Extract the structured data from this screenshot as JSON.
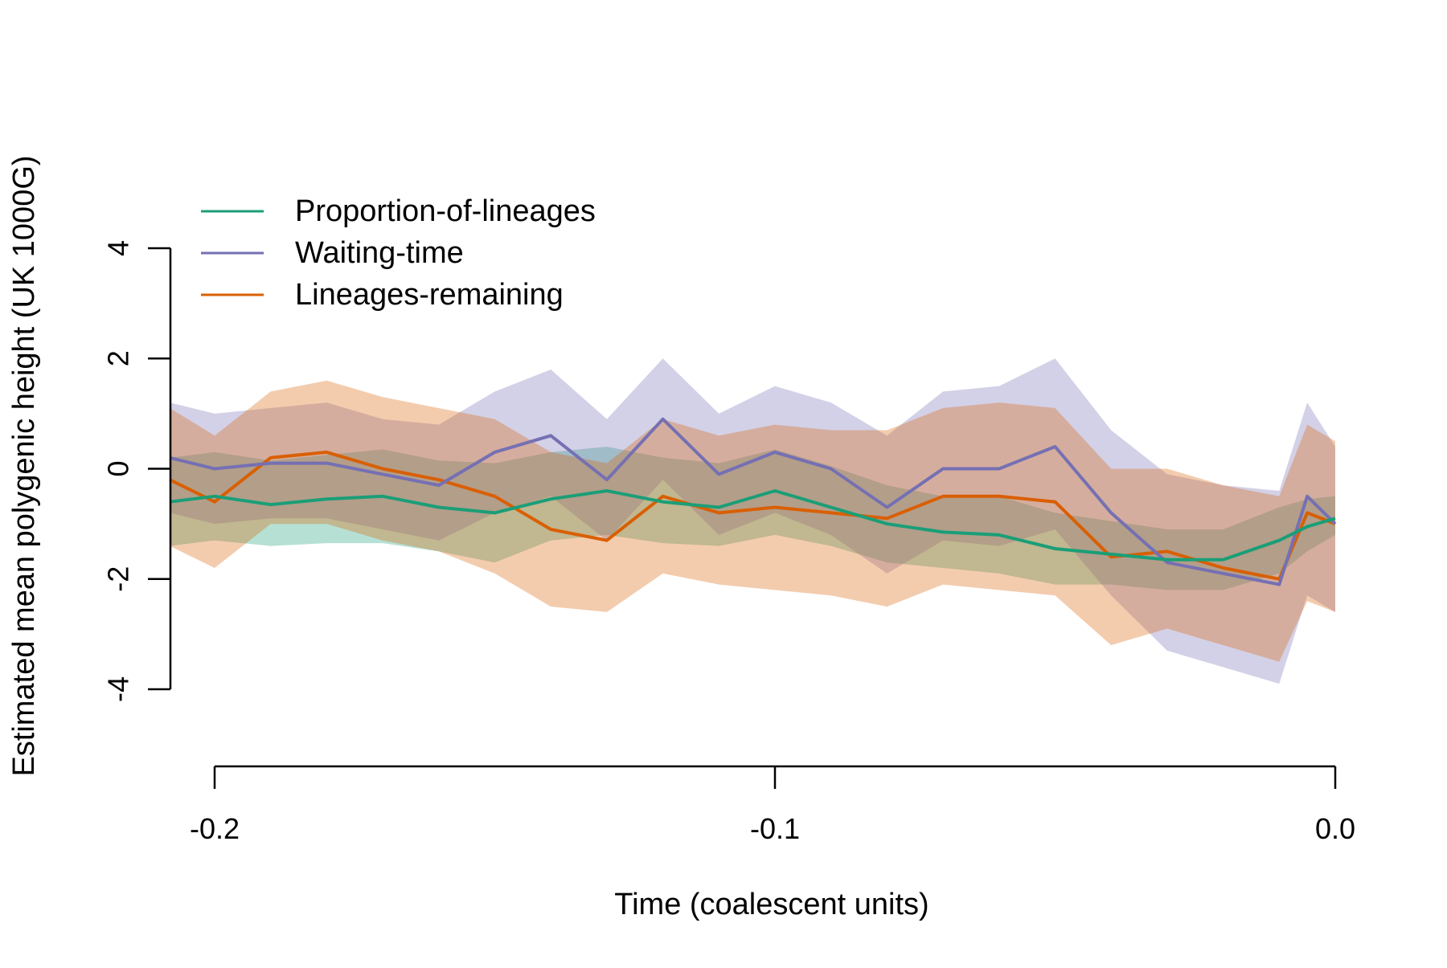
{
  "chart_data": {
    "type": "line",
    "title": "",
    "xlabel": "Time (coalescent units)",
    "ylabel": "Estimated mean polygenic height (UK 1000G)",
    "xlim": [
      -0.21,
      0.0
    ],
    "ylim": [
      -4,
      4
    ],
    "x_ticks": [
      -0.2,
      -0.1,
      0.0
    ],
    "x_tick_labels": [
      "-0.2",
      "-0.1",
      "0.0"
    ],
    "y_ticks": [
      -4,
      -2,
      0,
      2,
      4
    ],
    "y_tick_labels": [
      "-4",
      "-2",
      "0",
      "2",
      "4"
    ],
    "grid": false,
    "legend_position": "top-left",
    "series": [
      {
        "name": "Proportion-of-lineages",
        "color": "#1b9e77",
        "band_color": "rgba(27,158,119,0.32)",
        "x": [
          -0.208,
          -0.2,
          -0.19,
          -0.18,
          -0.17,
          -0.16,
          -0.15,
          -0.14,
          -0.13,
          -0.12,
          -0.11,
          -0.1,
          -0.09,
          -0.08,
          -0.07,
          -0.06,
          -0.05,
          -0.04,
          -0.03,
          -0.02,
          -0.01,
          -0.005,
          0.0
        ],
        "y": [
          -0.6,
          -0.5,
          -0.65,
          -0.55,
          -0.5,
          -0.7,
          -0.8,
          -0.55,
          -0.4,
          -0.6,
          -0.7,
          -0.4,
          -0.7,
          -1.0,
          -1.15,
          -1.2,
          -1.45,
          -1.55,
          -1.65,
          -1.65,
          -1.3,
          -1.05,
          -0.9
        ],
        "lower": [
          -1.4,
          -1.3,
          -1.4,
          -1.35,
          -1.35,
          -1.5,
          -1.7,
          -1.3,
          -1.2,
          -1.35,
          -1.4,
          -1.2,
          -1.4,
          -1.7,
          -1.8,
          -1.9,
          -2.1,
          -2.1,
          -2.2,
          -2.2,
          -1.9,
          -1.5,
          -1.2
        ],
        "upper": [
          0.2,
          0.3,
          0.15,
          0.25,
          0.35,
          0.15,
          0.1,
          0.3,
          0.4,
          0.2,
          0.1,
          0.35,
          0.05,
          -0.3,
          -0.5,
          -0.5,
          -0.8,
          -0.95,
          -1.1,
          -1.1,
          -0.7,
          -0.55,
          -0.5
        ]
      },
      {
        "name": "Waiting-time",
        "color": "#7570b3",
        "band_color": "rgba(117,112,179,0.32)",
        "x": [
          -0.208,
          -0.2,
          -0.19,
          -0.18,
          -0.17,
          -0.16,
          -0.15,
          -0.14,
          -0.13,
          -0.12,
          -0.11,
          -0.1,
          -0.09,
          -0.08,
          -0.07,
          -0.06,
          -0.05,
          -0.04,
          -0.03,
          -0.02,
          -0.01,
          -0.005,
          0.0
        ],
        "y": [
          0.2,
          0.0,
          0.1,
          0.1,
          -0.1,
          -0.3,
          0.3,
          0.6,
          -0.2,
          0.9,
          -0.1,
          0.3,
          0.0,
          -0.7,
          0.0,
          0.0,
          0.4,
          -0.8,
          -1.7,
          -1.9,
          -2.1,
          -0.5,
          -1.0
        ],
        "lower": [
          -0.8,
          -1.0,
          -0.9,
          -0.9,
          -1.1,
          -1.3,
          -0.8,
          -0.5,
          -1.3,
          -0.2,
          -1.2,
          -0.8,
          -1.2,
          -1.9,
          -1.3,
          -1.4,
          -1.1,
          -2.3,
          -3.3,
          -3.6,
          -3.9,
          -2.3,
          -2.6
        ],
        "upper": [
          1.2,
          1.0,
          1.1,
          1.2,
          0.9,
          0.8,
          1.4,
          1.8,
          0.9,
          2.0,
          1.0,
          1.5,
          1.2,
          0.6,
          1.4,
          1.5,
          2.0,
          0.7,
          -0.1,
          -0.3,
          -0.4,
          1.2,
          0.4
        ]
      },
      {
        "name": "Lineages-remaining",
        "color": "#d95f02",
        "band_color": "rgba(217,95,2,0.32)",
        "x": [
          -0.208,
          -0.2,
          -0.19,
          -0.18,
          -0.17,
          -0.16,
          -0.15,
          -0.14,
          -0.13,
          -0.12,
          -0.11,
          -0.1,
          -0.09,
          -0.08,
          -0.07,
          -0.06,
          -0.05,
          -0.04,
          -0.03,
          -0.02,
          -0.01,
          -0.005,
          0.0
        ],
        "y": [
          -0.2,
          -0.6,
          0.2,
          0.3,
          0.0,
          -0.2,
          -0.5,
          -1.1,
          -1.3,
          -0.5,
          -0.8,
          -0.7,
          -0.8,
          -0.9,
          -0.5,
          -0.5,
          -0.6,
          -1.6,
          -1.5,
          -1.8,
          -2.0,
          -0.8,
          -1.0
        ],
        "lower": [
          -1.4,
          -1.8,
          -1.0,
          -1.0,
          -1.3,
          -1.5,
          -1.9,
          -2.5,
          -2.6,
          -1.9,
          -2.1,
          -2.2,
          -2.3,
          -2.5,
          -2.1,
          -2.2,
          -2.3,
          -3.2,
          -2.9,
          -3.2,
          -3.5,
          -2.4,
          -2.6
        ],
        "upper": [
          1.1,
          0.6,
          1.4,
          1.6,
          1.3,
          1.1,
          0.9,
          0.3,
          0.1,
          0.9,
          0.6,
          0.8,
          0.7,
          0.7,
          1.1,
          1.2,
          1.1,
          0.0,
          0.0,
          -0.3,
          -0.5,
          0.8,
          0.5
        ]
      }
    ]
  }
}
